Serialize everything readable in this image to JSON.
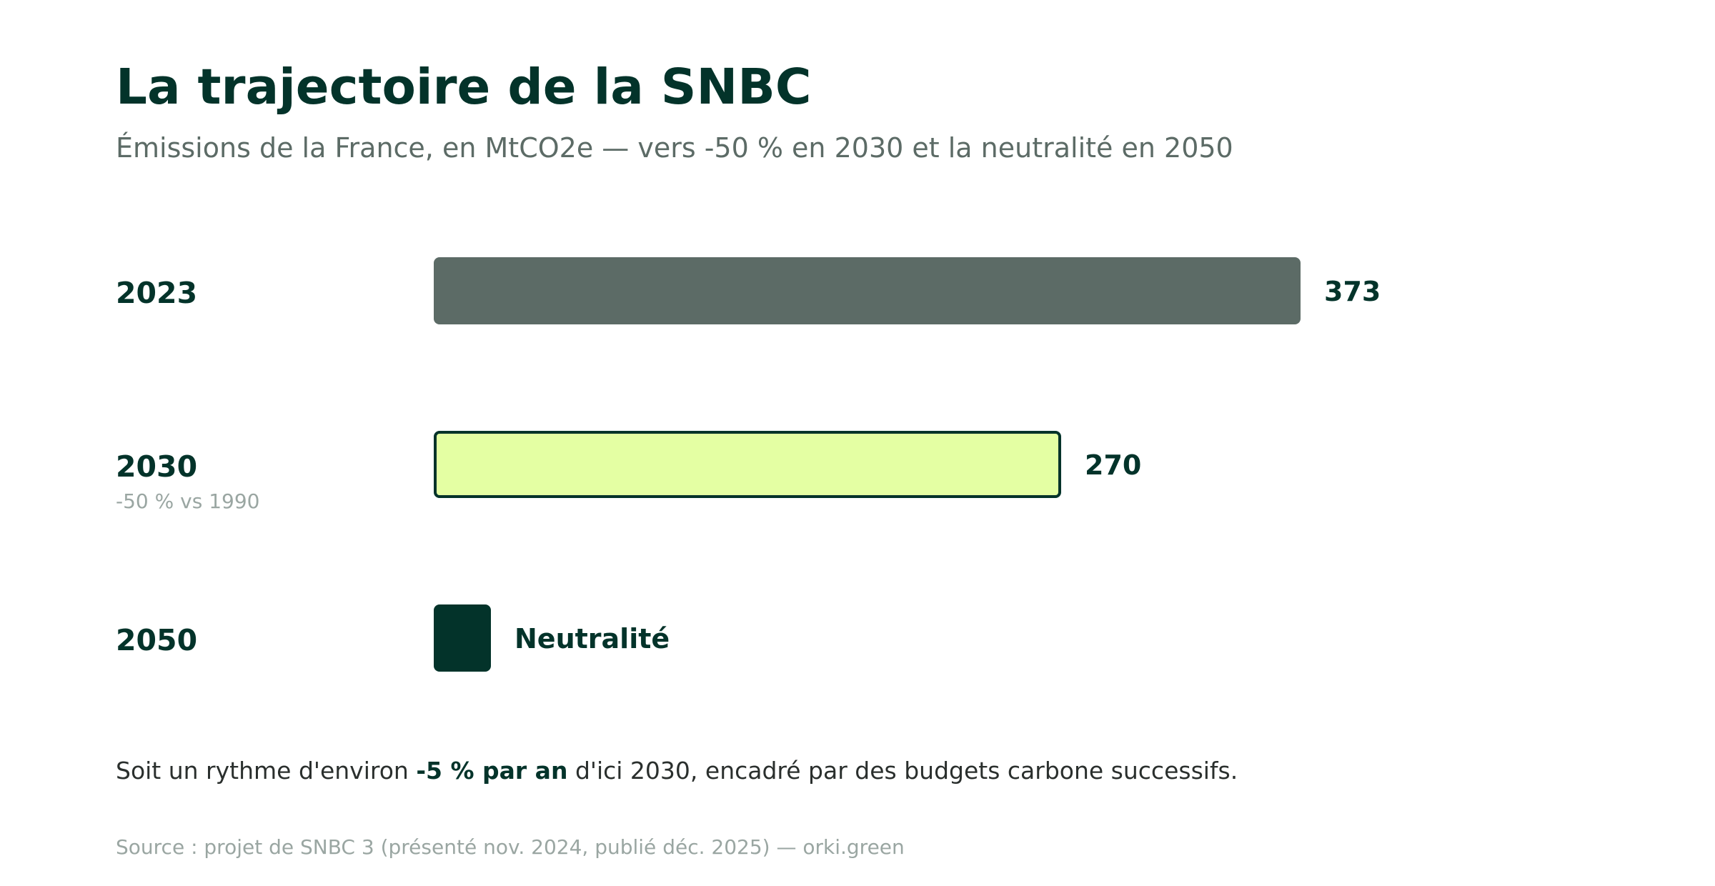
{
  "title": "La trajectoire de la SNBC",
  "subtitle": "Émissions de la France, en MtCO2e — vers -50 % en 2030 et la neutralité en 2050",
  "colors": {
    "dark_green": "#03332a",
    "grey_green": "#5c6b66",
    "lime": "#e4ffa3"
  },
  "chart_data": {
    "type": "bar",
    "orientation": "horizontal",
    "categories": [
      "2023",
      "2030",
      "2050"
    ],
    "values": [
      373,
      270,
      0
    ],
    "value_labels": [
      "373",
      "270",
      "Neutralité"
    ],
    "category_notes": [
      "",
      "-50 % vs 1990",
      ""
    ],
    "bar_colors": [
      "#5c6b66",
      "#e4ffa3",
      "#03332a"
    ]
  },
  "footer": {
    "note_before": "Soit un rythme d'environ ",
    "note_bold": "-5 % par an",
    "note_after": " d'ici 2030, encadré par des budgets carbone successifs.",
    "source": "Source : projet de SNBC 3 (présenté nov. 2024, publié déc. 2025) — orki.green"
  }
}
